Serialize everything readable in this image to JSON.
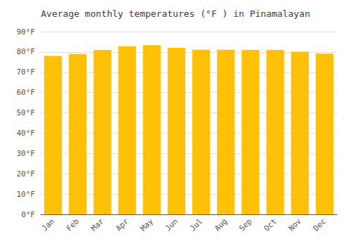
{
  "chart_data": {
    "type": "bar",
    "title": "Average monthly temperatures (°F ) in Pinamalayan",
    "categories": [
      "Jan",
      "Feb",
      "Mar",
      "Apr",
      "May",
      "Jun",
      "Jul",
      "Aug",
      "Sep",
      "Oct",
      "Nov",
      "Dec"
    ],
    "values": [
      78.1,
      79.0,
      81.0,
      82.8,
      83.3,
      82.0,
      81.1,
      81.1,
      81.0,
      81.0,
      80.1,
      79.2
    ],
    "color": "#FFC107",
    "ylim": [
      0,
      90
    ],
    "yticks": [
      {
        "value": 0,
        "label": "0°F"
      },
      {
        "value": 10,
        "label": "10°F"
      },
      {
        "value": 20,
        "label": "20°F"
      },
      {
        "value": 30,
        "label": "30°F"
      },
      {
        "value": 40,
        "label": "40°F"
      },
      {
        "value": 50,
        "label": "50°F"
      },
      {
        "value": 60,
        "label": "60°F"
      },
      {
        "value": 70,
        "label": "70°F"
      },
      {
        "value": 80,
        "label": "80°F"
      },
      {
        "value": 90,
        "label": "90°F"
      }
    ],
    "grid": true
  }
}
